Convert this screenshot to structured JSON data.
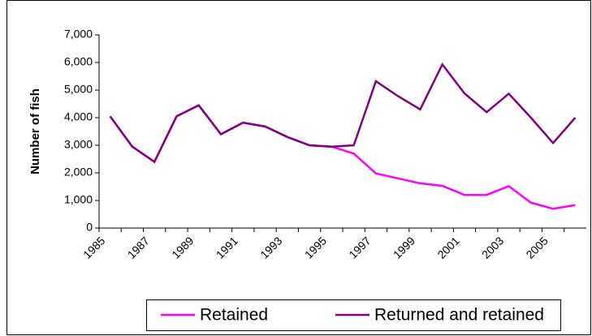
{
  "chart_data": {
    "type": "line",
    "y_label": "Number of fish",
    "categories": [
      "1985",
      null,
      "1987",
      null,
      "1989",
      null,
      "1991",
      null,
      "1993",
      null,
      "1995",
      null,
      "1997",
      null,
      "1999",
      null,
      "2001",
      null,
      "2003",
      null,
      "2005",
      null
    ],
    "series": [
      {
        "name": "Retained",
        "color": "#ff00ff",
        "values": [
          4050,
          2950,
          2400,
          4050,
          4450,
          3400,
          3820,
          3680,
          3300,
          3000,
          2950,
          2700,
          1980,
          1800,
          1620,
          1530,
          1200,
          1200,
          1520,
          920,
          700,
          830
        ]
      },
      {
        "name": "Returned and retained",
        "color": "#800080",
        "values": [
          4050,
          2950,
          2400,
          4050,
          4450,
          3400,
          3820,
          3680,
          3300,
          3000,
          2950,
          3000,
          5320,
          4780,
          4300,
          5930,
          4880,
          4200,
          4870,
          4000,
          3080,
          4000
        ]
      }
    ],
    "ylim": [
      0,
      7000
    ],
    "yticks": [
      {
        "value": 0,
        "label": "0"
      },
      {
        "value": 1000,
        "label": "1,000"
      },
      {
        "value": 2000,
        "label": "2,000"
      },
      {
        "value": 3000,
        "label": "3,000"
      },
      {
        "value": 4000,
        "label": "4,000"
      },
      {
        "value": 5000,
        "label": "5,000"
      },
      {
        "value": 6000,
        "label": "6,000"
      },
      {
        "value": 7000,
        "label": "7,000"
      }
    ],
    "legend": "bottom"
  }
}
